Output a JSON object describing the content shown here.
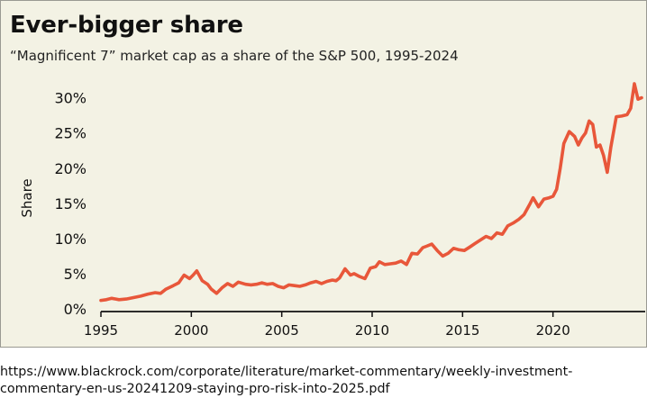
{
  "chart_data": {
    "type": "line",
    "title": "Ever-bigger share",
    "subtitle": "“Magnificent 7” market cap as a share of the S&P 500, 1995-2024",
    "xlabel": "",
    "ylabel": "Share",
    "xlim": [
      1995,
      2025.1
    ],
    "ylim": [
      0,
      32
    ],
    "x_ticks": [
      1995,
      2000,
      2005,
      2010,
      2015,
      2020
    ],
    "y_ticks": [
      0,
      5,
      10,
      15,
      20,
      25,
      30
    ],
    "y_tick_labels": [
      "0%",
      "5%",
      "10%",
      "15%",
      "20%",
      "25%",
      "30%"
    ],
    "grid": false,
    "line_color": "#e8573a",
    "series": [
      {
        "name": "",
        "x": [
          1995.0,
          1995.3,
          1995.6,
          1996.0,
          1996.4,
          1996.8,
          1997.2,
          1997.6,
          1998.0,
          1998.3,
          1998.6,
          1999.0,
          1999.3,
          1999.6,
          1999.9,
          2000.1,
          2000.3,
          2000.6,
          2000.9,
          2001.1,
          2001.4,
          2001.7,
          2002.0,
          2002.3,
          2002.6,
          2003.0,
          2003.3,
          2003.6,
          2003.9,
          2004.2,
          2004.5,
          2004.8,
          2005.1,
          2005.4,
          2005.7,
          2006.0,
          2006.3,
          2006.6,
          2006.9,
          2007.2,
          2007.5,
          2007.8,
          2008.0,
          2008.2,
          2008.5,
          2008.8,
          2009.0,
          2009.3,
          2009.6,
          2009.9,
          2010.2,
          2010.4,
          2010.7,
          2011.0,
          2011.3,
          2011.6,
          2011.9,
          2012.2,
          2012.5,
          2012.8,
          2013.0,
          2013.3,
          2013.6,
          2013.9,
          2014.2,
          2014.5,
          2014.8,
          2015.1,
          2015.4,
          2015.7,
          2016.0,
          2016.3,
          2016.6,
          2016.9,
          2017.2,
          2017.5,
          2017.8,
          2018.1,
          2018.4,
          2018.7,
          2018.9,
          2019.2,
          2019.5,
          2019.8,
          2020.0,
          2020.2,
          2020.4,
          2020.6,
          2020.9,
          2021.2,
          2021.4,
          2021.6,
          2021.8,
          2022.0,
          2022.2,
          2022.4,
          2022.6,
          2022.8,
          2023.0,
          2023.2,
          2023.5,
          2023.8,
          2024.1,
          2024.3,
          2024.5,
          2024.7,
          2024.9
        ],
        "y": [
          1.2,
          1.3,
          1.5,
          1.3,
          1.4,
          1.6,
          1.8,
          2.1,
          2.3,
          2.2,
          2.8,
          3.3,
          3.7,
          4.8,
          4.3,
          4.8,
          5.4,
          4.0,
          3.5,
          2.8,
          2.2,
          3.0,
          3.6,
          3.2,
          3.8,
          3.5,
          3.4,
          3.5,
          3.7,
          3.5,
          3.6,
          3.2,
          3.0,
          3.4,
          3.3,
          3.2,
          3.4,
          3.7,
          3.9,
          3.6,
          3.9,
          4.1,
          4.0,
          4.4,
          5.7,
          4.8,
          5.0,
          4.6,
          4.3,
          5.8,
          6.0,
          6.7,
          6.3,
          6.4,
          6.5,
          6.8,
          6.3,
          7.9,
          7.8,
          8.7,
          8.9,
          9.2,
          8.3,
          7.5,
          7.9,
          8.6,
          8.4,
          8.3,
          8.8,
          9.3,
          9.8,
          10.3,
          10.0,
          10.8,
          10.6,
          11.8,
          12.2,
          12.7,
          13.4,
          14.8,
          15.8,
          14.5,
          15.6,
          15.8,
          16.0,
          17.0,
          20.0,
          23.5,
          25.2,
          24.5,
          23.3,
          24.3,
          25.0,
          26.7,
          26.2,
          23.0,
          23.3,
          21.8,
          19.4,
          23.0,
          27.3,
          27.4,
          27.6,
          28.5,
          32.0,
          29.8,
          30.0
        ]
      }
    ]
  },
  "source": {
    "line1": "https://www.blackrock.com/corporate/literature/market-commentary/weekly-investment-",
    "line2": "commentary-en-us-20241209-staying-pro-risk-into-2025.pdf"
  }
}
